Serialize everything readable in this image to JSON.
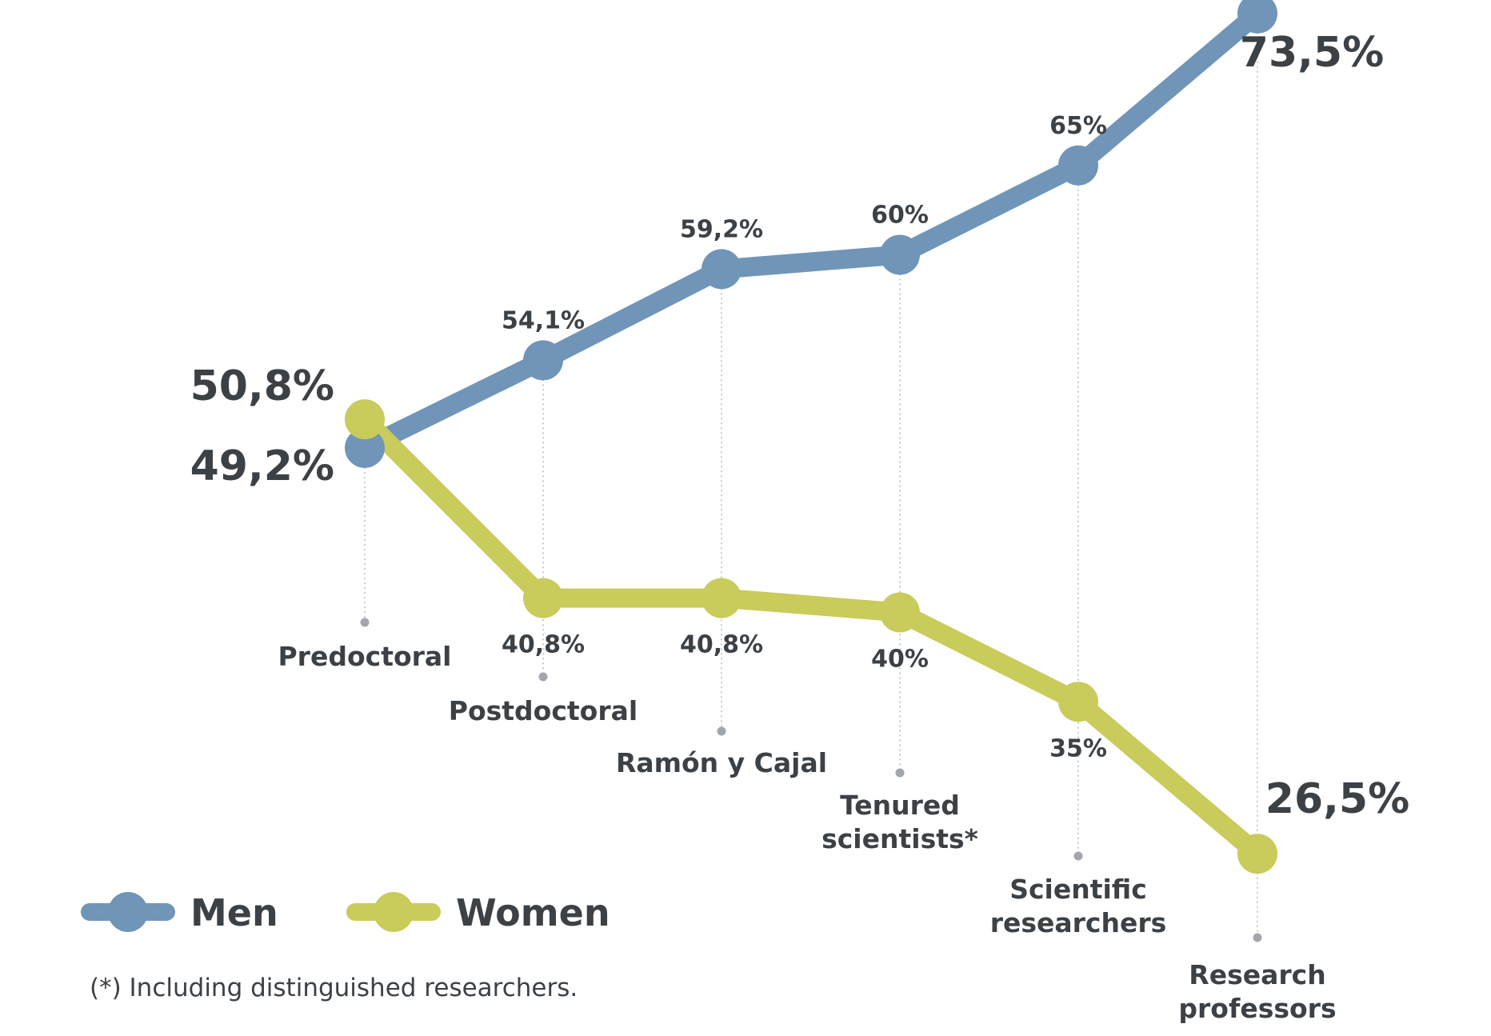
{
  "chart_data": {
    "type": "line",
    "categories": [
      "Predoctoral",
      "Postdoctoral",
      "Ramón y Cajal",
      "Tenured scientists*",
      "Scientific researchers",
      "Research professors"
    ],
    "category_lines": [
      [
        "Predoctoral"
      ],
      [
        "Postdoctoral"
      ],
      [
        "Ramón y Cajal"
      ],
      [
        "Tenured",
        "scientists*"
      ],
      [
        "Scientific",
        "researchers"
      ],
      [
        "Research",
        "professors"
      ]
    ],
    "series": [
      {
        "name": "Men",
        "color": "#7095b8",
        "values": [
          49.2,
          54.1,
          59.2,
          60,
          65,
          73.5
        ],
        "labels": [
          "49,2%",
          "54,1%",
          "59,2%",
          "60%",
          "65%",
          "73,5%"
        ]
      },
      {
        "name": "Women",
        "color": "#c9cb5b",
        "values": [
          50.8,
          40.8,
          40.8,
          40,
          35,
          26.5
        ],
        "labels": [
          "50,8%",
          "40,8%",
          "40,8%",
          "40%",
          "35%",
          "26,5%"
        ]
      }
    ],
    "legend_position": "bottom-left",
    "grid": false,
    "footnote": "(*) Including distinguished researchers."
  }
}
